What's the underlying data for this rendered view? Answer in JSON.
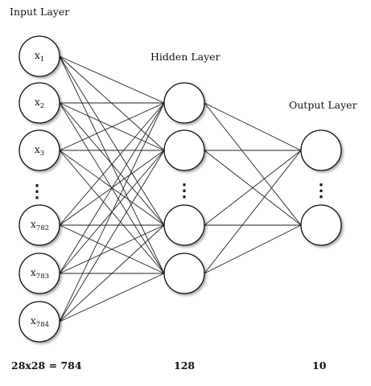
{
  "layers": {
    "input": {
      "label": "Input Layer",
      "size_label": "28x28 = 784",
      "nodes": [
        {
          "base": "x",
          "sub": "1"
        },
        {
          "base": "x",
          "sub": "2"
        },
        {
          "base": "x",
          "sub": "3"
        },
        {
          "base": "x",
          "sub": "782"
        },
        {
          "base": "x",
          "sub": "783"
        },
        {
          "base": "x",
          "sub": "784"
        }
      ]
    },
    "hidden": {
      "label": "Hidden Layer",
      "size_label": "128"
    },
    "output": {
      "label": "Output Layer",
      "size_label": "10"
    }
  }
}
